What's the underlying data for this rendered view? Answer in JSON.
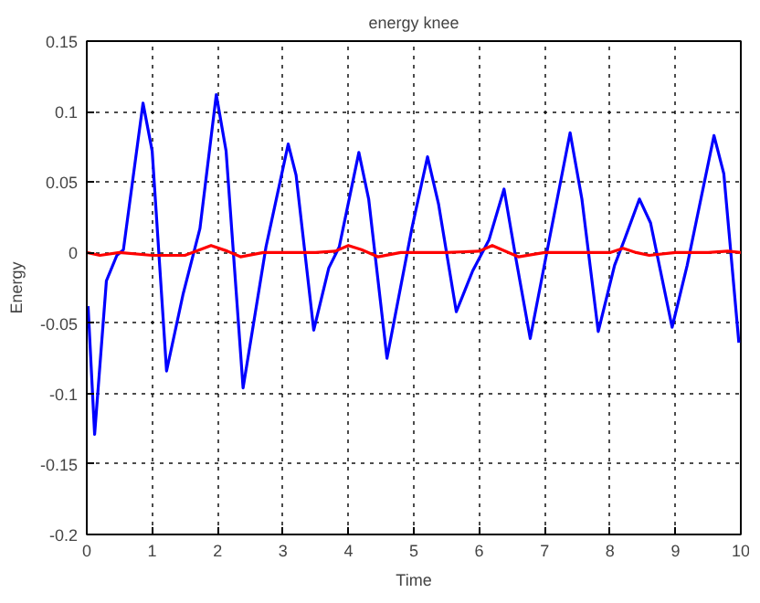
{
  "chart_data": {
    "type": "line",
    "title": "energy knee",
    "xlabel": "Time",
    "ylabel": "Energy",
    "xlim": [
      0,
      10
    ],
    "ylim": [
      -0.2,
      0.15
    ],
    "xticks": [
      0,
      1,
      2,
      3,
      4,
      5,
      6,
      7,
      8,
      9,
      10
    ],
    "yticks": [
      {
        "value": -0.2,
        "label": "-0.2"
      },
      {
        "value": -0.15,
        "label": "-0.15"
      },
      {
        "value": -0.1,
        "label": "-0.1"
      },
      {
        "value": -0.05,
        "label": "-0.05"
      },
      {
        "value": 0,
        "label": "0"
      },
      {
        "value": 0.05,
        "label": "0.05"
      },
      {
        "value": 0.1,
        "label": "0.1"
      },
      {
        "value": 0.15,
        "label": "0.15"
      }
    ],
    "grid": true,
    "line_style": "solid",
    "marker": "none",
    "series": [
      {
        "color": "#0000ff",
        "x": [
          0.02,
          0.12,
          0.3,
          0.46,
          0.56,
          0.86,
          1.0,
          1.22,
          1.47,
          1.73,
          1.98,
          2.13,
          2.39,
          2.74,
          3.08,
          3.2,
          3.47,
          3.7,
          3.86,
          4.16,
          4.31,
          4.59,
          4.97,
          5.21,
          5.38,
          5.65,
          5.9,
          6.15,
          6.38,
          6.56,
          6.78,
          7.05,
          7.39,
          7.57,
          7.82,
          8.07,
          8.22,
          8.45,
          8.62,
          8.95,
          9.18,
          9.59,
          9.74,
          9.97
        ],
        "values": [
          -0.038,
          -0.129,
          -0.02,
          -0.002,
          0.002,
          0.106,
          0.072,
          -0.084,
          -0.03,
          0.017,
          0.112,
          0.072,
          -0.096,
          0.004,
          0.077,
          0.055,
          -0.055,
          -0.011,
          0.004,
          0.071,
          0.038,
          -0.075,
          0.017,
          0.068,
          0.034,
          -0.042,
          -0.013,
          0.009,
          0.045,
          -0.004,
          -0.061,
          0.004,
          0.085,
          0.038,
          -0.056,
          -0.009,
          0.009,
          0.038,
          0.021,
          -0.053,
          -0.009,
          0.083,
          0.056,
          -0.064
        ]
      },
      {
        "color": "#ff0000",
        "x": [
          0,
          0.2,
          0.5,
          1,
          1.5,
          1.9,
          2.15,
          2.35,
          2.7,
          3.5,
          3.8,
          4.0,
          4.2,
          4.45,
          4.8,
          5.5,
          6.0,
          6.2,
          6.45,
          6.6,
          7.0,
          8.0,
          8.2,
          8.4,
          8.6,
          9.0,
          9.5,
          9.8,
          10
        ],
        "values": [
          0,
          -0.002,
          0,
          -0.002,
          -0.002,
          0.005,
          0.001,
          -0.003,
          0,
          0,
          0.001,
          0.005,
          0.002,
          -0.003,
          0,
          0,
          0.001,
          0.005,
          0,
          -0.003,
          0,
          0,
          0.003,
          0,
          -0.002,
          0,
          0,
          0.001,
          0
        ]
      }
    ]
  }
}
